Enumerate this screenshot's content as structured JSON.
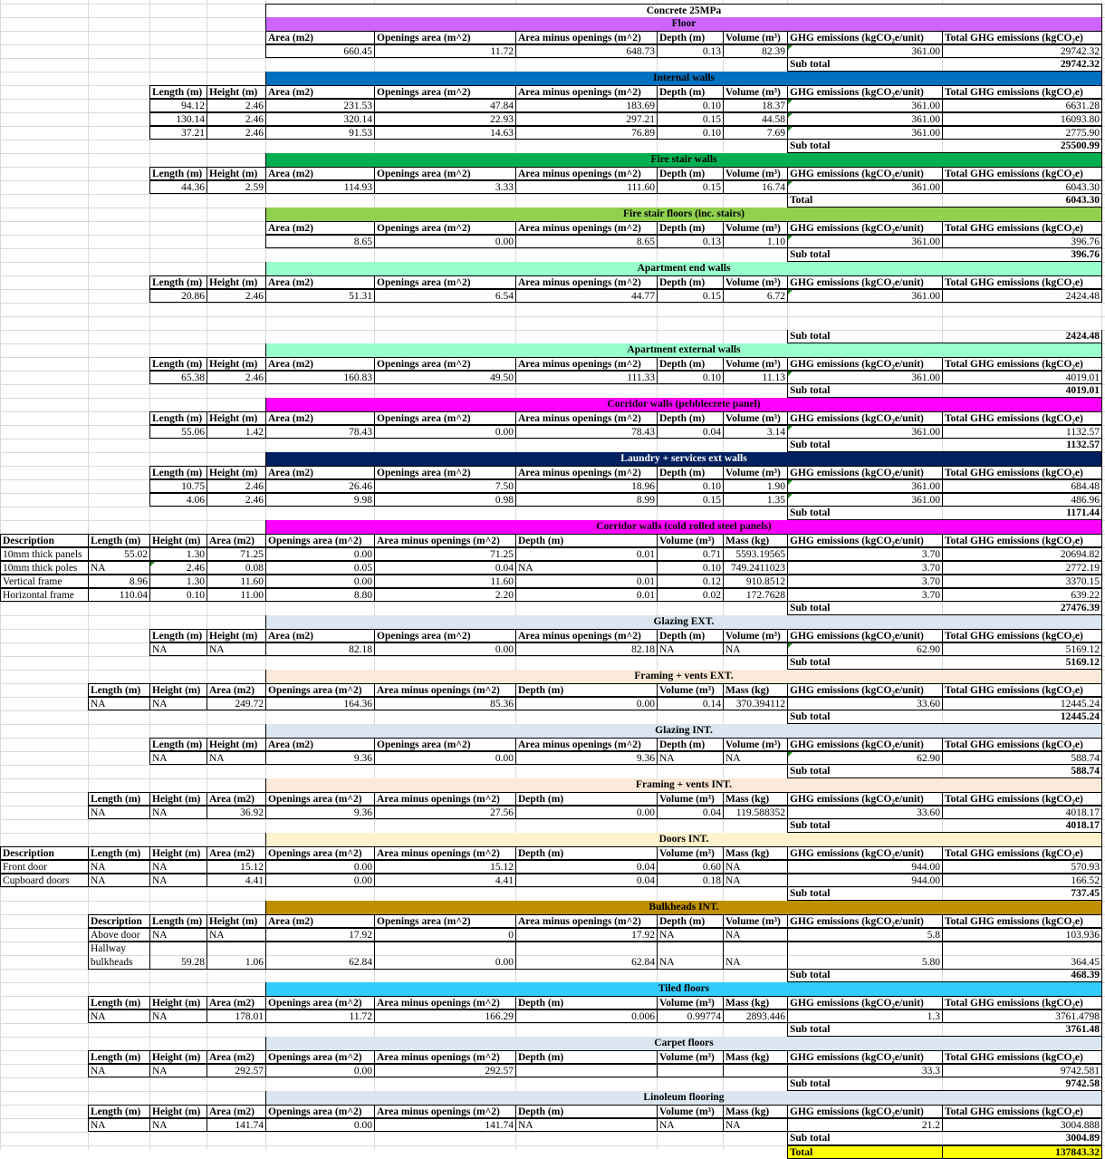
{
  "sheet_title": "Concrete 25MPa",
  "colors": {
    "gridline": "#d9d9d9",
    "border": "#000000",
    "total_fill": "#ffff00",
    "triangle": "#1a8a1a"
  },
  "sections": [
    {
      "name": "Floor",
      "fill": "#cc66ff",
      "text_color": "#000000",
      "layout": "A",
      "headers": [
        "",
        "",
        "Area (m2)",
        "Openings area (m^2)",
        "Area minus openings (m^2)",
        "Depth (m)",
        "Volume (m³)",
        "GHG emissions (kgCO₂e/unit)",
        "Total GHG emissions (kgCO₂e)"
      ],
      "rows": [
        [
          "",
          "",
          "660.45",
          "11.72",
          "648.73",
          "0.13",
          "82.39",
          "361.00",
          "29742.32"
        ]
      ],
      "total_label": "Sub total",
      "total_value": "29742.32"
    },
    {
      "name": "Internal walls",
      "fill": "#0070c0",
      "text_color": "#000000",
      "layout": "A",
      "headers": [
        "Length (m)",
        "Height (m)",
        "Area (m2)",
        "Openings area (m^2)",
        "Area minus openings (m^2)",
        "Depth (m)",
        "Volume (m³)",
        "GHG emissions (kgCO₂e/unit)",
        "Total GHG emissions (kgCO₂e)"
      ],
      "rows": [
        [
          "94.12",
          "2.46",
          "231.53",
          "47.84",
          "183.69",
          "0.10",
          "18.37",
          "361.00",
          "6631.28"
        ],
        [
          "130.14",
          "2.46",
          "320.14",
          "22.93",
          "297.21",
          "0.15",
          "44.58",
          "361.00",
          "16093.80"
        ],
        [
          "37.21",
          "2.46",
          "91.53",
          "14.63",
          "76.89",
          "0.10",
          "7.69",
          "361.00",
          "2775.90"
        ]
      ],
      "total_label": "Sub total",
      "total_value": "25500.99"
    },
    {
      "name": "Fire stair walls",
      "fill": "#00b050",
      "text_color": "#000000",
      "layout": "A",
      "headers": [
        "Length (m)",
        "Height (m)",
        "Area (m2)",
        "Openings area (m^2)",
        "Area minus openings (m^2)",
        "Depth (m)",
        "Volume (m³)",
        "GHG emissions (kgCO₂e/unit)",
        "Total GHG emissions (kgCO₂e)"
      ],
      "rows": [
        [
          "44.36",
          "2.59",
          "114.93",
          "3.33",
          "111.60",
          "0.15",
          "16.74",
          "361.00",
          "6043.30"
        ]
      ],
      "total_label": "Total",
      "total_value": "6043.30"
    },
    {
      "name": "Fire stair floors (inc. stairs)",
      "fill": "#92d050",
      "text_color": "#000000",
      "layout": "A",
      "headers": [
        "",
        "",
        "Area (m2)",
        "Openings area (m^2)",
        "Area minus openings (m^2)",
        "Depth (m)",
        "Volume (m³)",
        "GHG emissions (kgCO₂e/unit)",
        "Total GHG emissions (kgCO₂e)"
      ],
      "rows": [
        [
          "",
          "",
          "8.65",
          "0.00",
          "8.65",
          "0.13",
          "1.10",
          "361.00",
          "396.76"
        ]
      ],
      "total_label": "Sub total",
      "total_value": "396.76"
    },
    {
      "name": "Apartment end walls",
      "fill": "#99ffcc",
      "text_color": "#000000",
      "layout": "A",
      "gap_rows": 2,
      "headers": [
        "Length (m)",
        "Height (m)",
        "Area (m2)",
        "Openings area (m^2)",
        "Area minus openings (m^2)",
        "Depth (m)",
        "Volume (m³)",
        "GHG emissions (kgCO₂e/unit)",
        "Total GHG emissions (kgCO₂e)"
      ],
      "rows": [
        [
          "20.86",
          "2.46",
          "51.31",
          "6.54",
          "44.77",
          "0.15",
          "6.72",
          "361.00",
          "2424.48"
        ]
      ],
      "total_label": "Sub total",
      "total_value": "2424.48"
    },
    {
      "name": "Apartment external walls",
      "fill": "#99ffcc",
      "text_color": "#000000",
      "layout": "A",
      "headers": [
        "Length (m)",
        "Height (m)",
        "Area (m2)",
        "Openings area (m^2)",
        "Area minus openings (m^2)",
        "Depth (m)",
        "Volume (m³)",
        "GHG emissions (kgCO₂e/unit)",
        "Total GHG emissions (kgCO₂e)"
      ],
      "rows": [
        [
          "65.38",
          "2.46",
          "160.83",
          "49.50",
          "111.33",
          "0.10",
          "11.13",
          "361.00",
          "4019.01"
        ]
      ],
      "total_label": "Sub total",
      "total_value": "4019.01"
    },
    {
      "name": "Corridor walls (pebblecrete panel)",
      "fill": "#ff00ff",
      "text_color": "#000000",
      "layout": "A",
      "headers": [
        "Length (m)",
        "Height (m)",
        "Area (m2)",
        "Openings area (m^2)",
        "Area minus openings (m^2)",
        "Depth (m)",
        "Volume (m³)",
        "GHG emissions (kgCO₂e/unit)",
        "Total GHG emissions (kgCO₂e)"
      ],
      "rows": [
        [
          "55.06",
          "1.42",
          "78.43",
          "0.00",
          "78.43",
          "0.04",
          "3.14",
          "361.00",
          "1132.57"
        ]
      ],
      "total_label": "Sub total",
      "total_value": "1132.57"
    },
    {
      "name": "Laundry + services ext walls",
      "fill": "#002060",
      "text_color": "#ffffff",
      "layout": "A",
      "headers": [
        "Length (m)",
        "Height (m)",
        "Area (m2)",
        "Openings area (m^2)",
        "Area minus openings (m^2)",
        "Depth (m)",
        "Volume (m³)",
        "GHG emissions (kgCO₂e/unit)",
        "Total GHG emissions (kgCO₂e)"
      ],
      "rows": [
        [
          "10.75",
          "2.46",
          "26.46",
          "7.50",
          "18.96",
          "0.10",
          "1.90",
          "361.00",
          "684.48"
        ],
        [
          "4.06",
          "2.46",
          "9.98",
          "0.98",
          "8.99",
          "0.15",
          "1.35",
          "361.00",
          "486.96"
        ]
      ],
      "total_label": "Sub total",
      "total_value": "1171.44"
    },
    {
      "name": "Corridor walls (cold rolled steel panels)",
      "fill": "#ff00ff",
      "text_color": "#000000",
      "layout": "B",
      "desc": true,
      "headers": [
        "Description",
        "Length (m)",
        "Height (m)",
        "Area (m2)",
        "Openings area (m^2)",
        "Area minus openings (m^2)",
        "Depth (m)",
        "Volume (m³)",
        "Mass (kg)",
        "GHG emissions (kgCO₂e/unit)",
        "Total GHG emissions (kgCO₂e)"
      ],
      "rows": [
        [
          "10mm thick panels",
          "55.02",
          "1.30",
          "71.25",
          "0.00",
          "71.25",
          "0.01",
          "0.71",
          "5593.19565",
          "3.70",
          "20694.82"
        ],
        [
          "10mm thick poles",
          "NA",
          "2.46",
          "0.08",
          "0.05",
          "0.04",
          "NA",
          "0.10",
          "749.2411023",
          "3.70",
          "2772.19"
        ],
        [
          "Vertical frame",
          "8.96",
          "1.30",
          "11.60",
          "0.00",
          "11.60",
          "0.01",
          "0.12",
          "910.8512",
          "3.70",
          "3370.15"
        ],
        [
          "Horizontal frame",
          "110.04",
          "0.10",
          "11.00",
          "8.80",
          "2.20",
          "0.01",
          "0.02",
          "172.7628",
          "3.70",
          "639.22"
        ]
      ],
      "total_label": "Sub total",
      "total_value": "27476.39"
    },
    {
      "name": "Glazing EXT.",
      "fill": "#dce6f1",
      "text_color": "#000000",
      "layout": "A",
      "headers": [
        "Length (m)",
        "Height (m)",
        "Area (m2)",
        "Openings area (m^2)",
        "Area minus openings (m^2)",
        "Depth (m)",
        "Volume (m³)",
        "GHG emissions (kgCO₂e/unit)",
        "Total GHG emissions (kgCO₂e)"
      ],
      "rows": [
        [
          "NA",
          "NA",
          "82.18",
          "0.00",
          "82.18",
          "NA",
          "NA",
          "62.90",
          "5169.12"
        ]
      ],
      "total_label": "Sub total",
      "total_value": "5169.12"
    },
    {
      "name": "Framing + vents EXT.",
      "fill": "#fde9d9",
      "text_color": "#000000",
      "layout": "B",
      "headers": [
        "",
        "Length (m)",
        "Height (m)",
        "Area (m2)",
        "Openings area (m^2)",
        "Area minus openings (m^2)",
        "Depth (m)",
        "Volume (m³)",
        "Mass (kg)",
        "GHG emissions (kgCO₂e/unit)",
        "Total GHG emissions (kgCO₂e)"
      ],
      "rows": [
        [
          "",
          "NA",
          "NA",
          "249.72",
          "164.36",
          "85.36",
          "0.00",
          "0.14",
          "370.394112",
          "33.60",
          "12445.24"
        ]
      ],
      "total_label": "Sub total",
      "total_value": "12445.24"
    },
    {
      "name": "Glazing INT.",
      "fill": "#dce6f1",
      "text_color": "#000000",
      "layout": "A",
      "headers": [
        "Length (m)",
        "Height (m)",
        "Area (m2)",
        "Openings area (m^2)",
        "Area minus openings (m^2)",
        "Depth (m)",
        "Volume (m³)",
        "GHG emissions (kgCO₂e/unit)",
        "Total GHG emissions (kgCO₂e)"
      ],
      "rows": [
        [
          "NA",
          "NA",
          "9.36",
          "0.00",
          "9.36",
          "NA",
          "NA",
          "62.90",
          "588.74"
        ]
      ],
      "total_label": "Sub total",
      "total_value": "588.74"
    },
    {
      "name": "Framing + vents INT.",
      "fill": "#fde9d9",
      "text_color": "#000000",
      "layout": "B",
      "headers": [
        "",
        "Length (m)",
        "Height (m)",
        "Area (m2)",
        "Openings area (m^2)",
        "Area minus openings (m^2)",
        "Depth (m)",
        "Volume (m³)",
        "Mass (kg)",
        "GHG emissions (kgCO₂e/unit)",
        "Total GHG emissions (kgCO₂e)"
      ],
      "rows": [
        [
          "",
          "NA",
          "NA",
          "36.92",
          "9.36",
          "27.56",
          "0.00",
          "0.04",
          "119.588352",
          "33.60",
          "4018.17"
        ]
      ],
      "total_label": "Sub total",
      "total_value": "4018.17"
    },
    {
      "name": "Doors INT.",
      "fill": "#fff2cc",
      "text_color": "#000000",
      "layout": "B",
      "desc": true,
      "headers": [
        "Description",
        "Length (m)",
        "Height (m)",
        "Area (m2)",
        "Openings area (m^2)",
        "Area minus openings (m^2)",
        "Depth (m)",
        "Volume (m³)",
        "Mass (kg)",
        "GHG emissions (kgCO₂e/unit)",
        "Total GHG emissions (kgCO₂e)"
      ],
      "rows": [
        [
          "Front door",
          "NA",
          "NA",
          "15.12",
          "0.00",
          "15.12",
          "0.04",
          "0.60",
          "NA",
          "944.00",
          "570.93"
        ],
        [
          "Cupboard doors",
          "NA",
          "NA",
          "4.41",
          "0.00",
          "4.41",
          "0.04",
          "0.18",
          "NA",
          "944.00",
          "166.52"
        ]
      ],
      "total_label": "Sub total",
      "total_value": "737.45"
    },
    {
      "name": "Bulkheads INT.",
      "fill": "#bf8f00",
      "text_color": "#000000",
      "layout": "C",
      "headers": [
        "Description",
        "Length (m)",
        "Height (m)",
        "Area (m2)",
        "Openings area (m^2)",
        "Area minus openings (m^2)",
        "Depth (m)",
        "Volume (m³)",
        "GHG emissions (kgCO₂e/unit)",
        "Total GHG emissions (kgCO₂e)"
      ],
      "rows": [
        [
          "Above door",
          "NA",
          "NA",
          "17.92",
          "0",
          "17.92",
          "NA",
          "NA",
          "5.8",
          "103.936"
        ],
        [
          "Hallway bulkheads",
          "59.28",
          "1.06",
          "62.84",
          "0.00",
          "62.84",
          "NA",
          "NA",
          "5.80",
          "364.45"
        ]
      ],
      "total_label": "Sub total",
      "total_value": "468.39"
    },
    {
      "name": "Tiled floors",
      "fill": "#33ccff",
      "text_color": "#000000",
      "layout": "B",
      "headers": [
        "",
        "Length (m)",
        "Height (m)",
        "Area (m2)",
        "Openings area (m^2)",
        "Area minus openings (m^2)",
        "Depth (m)",
        "Volume (m³)",
        "Mass (kg)",
        "GHG emissions (kgCO₂e/unit)",
        "Total GHG emissions (kgCO₂e)"
      ],
      "rows": [
        [
          "",
          "NA",
          "NA",
          "178.01",
          "11.72",
          "166.29",
          "0.006",
          "0.99774",
          "2893.446",
          "1.3",
          "3761.4798"
        ]
      ],
      "total_label": "Sub total",
      "total_value": "3761.48"
    },
    {
      "name": "Carpet floors",
      "fill": "#dce6f1",
      "text_color": "#000000",
      "layout": "B",
      "headers": [
        "",
        "Length (m)",
        "Height (m)",
        "Area (m2)",
        "Openings area (m^2)",
        "Area minus openings (m^2)",
        "Depth (m)",
        "Volume (m³)",
        "Mass (kg)",
        "GHG emissions (kgCO₂e/unit)",
        "Total GHG emissions (kgCO₂e)"
      ],
      "rows": [
        [
          "",
          "NA",
          "NA",
          "292.57",
          "0.00",
          "292.57",
          "",
          "",
          "",
          "33.3",
          "9742.581"
        ]
      ],
      "total_label": "Sub total",
      "total_value": "9742.58"
    },
    {
      "name": "Linoleum flooring",
      "fill": "#dce6f1",
      "text_color": "#000000",
      "layout": "B",
      "headers": [
        "",
        "Length (m)",
        "Height (m)",
        "Area (m2)",
        "Openings area (m^2)",
        "Area minus openings (m^2)",
        "Depth (m)",
        "Volume (m³)",
        "Mass (kg)",
        "GHG emissions (kgCO₂e/unit)",
        "Total GHG emissions (kgCO₂e)"
      ],
      "rows": [
        [
          "",
          "NA",
          "NA",
          "141.74",
          "0.00",
          "141.74",
          "NA",
          "NA",
          "NA",
          "21.2",
          "3004.888"
        ]
      ],
      "total_label": "Sub total",
      "total_value": "3004.89"
    }
  ],
  "grand_total": {
    "label": "Total",
    "value": "137843.32"
  }
}
